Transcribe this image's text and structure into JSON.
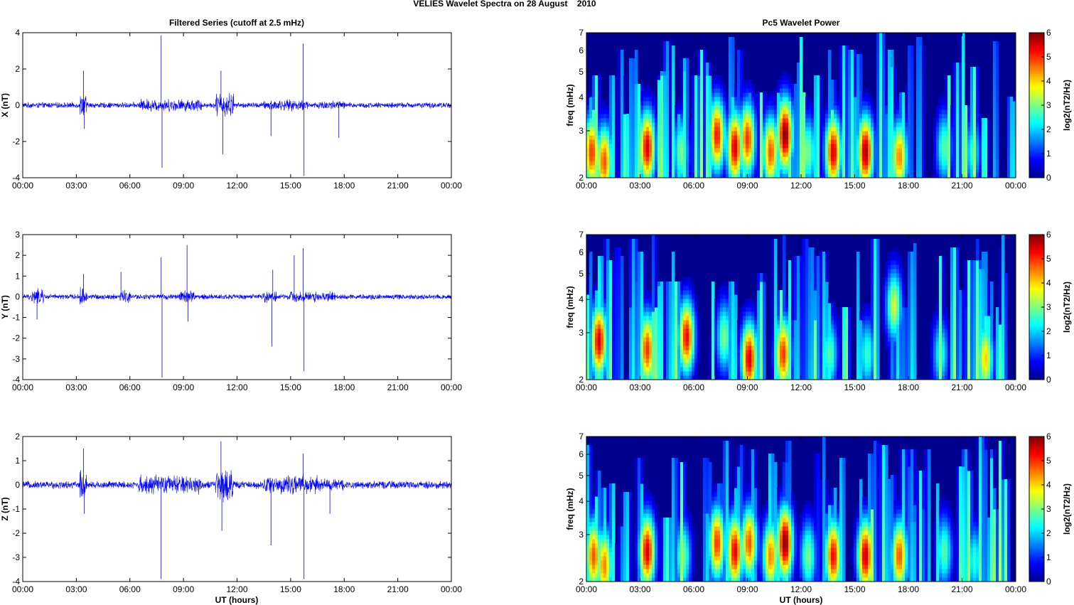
{
  "figure": {
    "title": "VELIES Wavelet Spectra on 28 August    2010",
    "left_title": "Filtered Series (cutoff at 2.5 mHz)",
    "right_title": "Pc5 Wavelet Power",
    "x_label": "UT (hours)",
    "freq_label": "freq (mHz)",
    "colorbar_label": "log2(nT2/Hz)"
  },
  "chart_data": [
    {
      "type": "line",
      "name": "x-filtered-series",
      "ylabel": "X (nT)",
      "xlim": [
        0,
        24
      ],
      "ylim": [
        -4,
        4
      ],
      "x_ticks": [
        "00:00",
        "03:00",
        "06:00",
        "09:00",
        "12:00",
        "15:00",
        "18:00",
        "21:00",
        "00:00"
      ],
      "y_ticks": [
        -4,
        -2,
        0,
        2,
        4
      ],
      "color": "#0000ff",
      "baseline_amplitude": 0.18,
      "activity_bursts": [
        {
          "start_hours": 3.2,
          "end_hours": 3.6,
          "amplitude": 0.7
        },
        {
          "start_hours": 6.5,
          "end_hours": 10.0,
          "amplitude": 0.4
        },
        {
          "start_hours": 10.8,
          "end_hours": 11.8,
          "amplitude": 0.8
        },
        {
          "start_hours": 13.5,
          "end_hours": 16.0,
          "amplitude": 0.35
        },
        {
          "start_hours": 16.5,
          "end_hours": 18.0,
          "amplitude": 0.3
        }
      ],
      "spikes": [
        {
          "x": 3.4,
          "y": 1.9
        },
        {
          "x": 3.45,
          "y": -1.3
        },
        {
          "x": 7.75,
          "y": 3.85
        },
        {
          "x": 7.8,
          "y": -3.45
        },
        {
          "x": 11.1,
          "y": 1.9
        },
        {
          "x": 11.2,
          "y": -2.7
        },
        {
          "x": 13.9,
          "y": -1.7
        },
        {
          "x": 15.7,
          "y": 3.4
        },
        {
          "x": 15.75,
          "y": -3.9
        },
        {
          "x": 17.7,
          "y": -1.8
        }
      ]
    },
    {
      "type": "line",
      "name": "y-filtered-series",
      "ylabel": "Y (nT)",
      "xlim": [
        0,
        24
      ],
      "ylim": [
        -4,
        3
      ],
      "x_ticks": [
        "00:00",
        "03:00",
        "06:00",
        "09:00",
        "12:00",
        "15:00",
        "18:00",
        "21:00",
        "00:00"
      ],
      "y_ticks": [
        -4,
        -3,
        -2,
        -1,
        0,
        1,
        2,
        3
      ],
      "color": "#0000ff",
      "baseline_amplitude": 0.15,
      "activity_bursts": [
        {
          "start_hours": 0.5,
          "end_hours": 1.2,
          "amplitude": 0.45
        },
        {
          "start_hours": 3.2,
          "end_hours": 3.6,
          "amplitude": 0.5
        },
        {
          "start_hours": 5.4,
          "end_hours": 6.0,
          "amplitude": 0.4
        },
        {
          "start_hours": 8.8,
          "end_hours": 9.6,
          "amplitude": 0.4
        },
        {
          "start_hours": 13.5,
          "end_hours": 14.2,
          "amplitude": 0.35
        },
        {
          "start_hours": 15.0,
          "end_hours": 17.5,
          "amplitude": 0.3
        }
      ],
      "spikes": [
        {
          "x": 0.8,
          "y": -1.1
        },
        {
          "x": 3.4,
          "y": 1.1
        },
        {
          "x": 5.5,
          "y": 1.2
        },
        {
          "x": 7.75,
          "y": 1.9
        },
        {
          "x": 7.8,
          "y": -3.9
        },
        {
          "x": 9.2,
          "y": 2.5
        },
        {
          "x": 9.25,
          "y": -1.2
        },
        {
          "x": 13.95,
          "y": -2.4
        },
        {
          "x": 14.0,
          "y": 1.3
        },
        {
          "x": 15.2,
          "y": 2.0
        },
        {
          "x": 15.7,
          "y": 2.35
        },
        {
          "x": 15.75,
          "y": -3.6
        }
      ]
    },
    {
      "type": "line",
      "name": "z-filtered-series",
      "ylabel": "Z (nT)",
      "xlim": [
        0,
        24
      ],
      "ylim": [
        -4,
        2
      ],
      "x_ticks": [
        "00:00",
        "03:00",
        "06:00",
        "09:00",
        "12:00",
        "15:00",
        "18:00",
        "21:00",
        "00:00"
      ],
      "y_ticks": [
        -4,
        -3,
        -2,
        -1,
        0,
        1,
        2
      ],
      "color": "#0000ff",
      "baseline_amplitude": 0.18,
      "activity_bursts": [
        {
          "start_hours": 3.2,
          "end_hours": 3.6,
          "amplitude": 0.7
        },
        {
          "start_hours": 6.5,
          "end_hours": 10.0,
          "amplitude": 0.45
        },
        {
          "start_hours": 10.8,
          "end_hours": 11.8,
          "amplitude": 0.8
        },
        {
          "start_hours": 13.5,
          "end_hours": 16.5,
          "amplitude": 0.45
        },
        {
          "start_hours": 16.5,
          "end_hours": 18.0,
          "amplitude": 0.3
        }
      ],
      "spikes": [
        {
          "x": 3.4,
          "y": 1.5
        },
        {
          "x": 3.45,
          "y": -1.2
        },
        {
          "x": 7.75,
          "y": -3.9
        },
        {
          "x": 11.1,
          "y": 1.8
        },
        {
          "x": 11.15,
          "y": -1.9
        },
        {
          "x": 13.9,
          "y": -2.5
        },
        {
          "x": 15.7,
          "y": 1.3
        },
        {
          "x": 15.75,
          "y": -3.9
        },
        {
          "x": 17.2,
          "y": -1.2
        }
      ]
    },
    {
      "type": "heatmap",
      "name": "x-wavelet-power",
      "ylabel": "freq (mHz)",
      "xlim": [
        0,
        24
      ],
      "ylim": [
        2,
        7
      ],
      "y_scale": "log",
      "x_ticks": [
        "00:00",
        "03:00",
        "06:00",
        "09:00",
        "12:00",
        "15:00",
        "18:00",
        "21:00",
        "00:00"
      ],
      "y_ticks": [
        2,
        3,
        4,
        5,
        6,
        7
      ],
      "colorbar": {
        "range": [
          0,
          6
        ],
        "ticks": [
          0,
          1,
          2,
          3,
          4,
          5,
          6
        ],
        "colormap": "jet"
      },
      "blobs": [
        {
          "x_hours": 0.3,
          "f_mHz": 2.5,
          "power": 5.0
        },
        {
          "x_hours": 1.0,
          "f_mHz": 2.3,
          "power": 4.8
        },
        {
          "x_hours": 3.4,
          "f_mHz": 2.6,
          "power": 5.5
        },
        {
          "x_hours": 5.3,
          "f_mHz": 2.5,
          "power": 3.0
        },
        {
          "x_hours": 7.3,
          "f_mHz": 2.9,
          "power": 5.2
        },
        {
          "x_hours": 8.3,
          "f_mHz": 2.6,
          "power": 5.5
        },
        {
          "x_hours": 9.0,
          "f_mHz": 2.8,
          "power": 5.0
        },
        {
          "x_hours": 10.3,
          "f_mHz": 2.5,
          "power": 4.8
        },
        {
          "x_hours": 11.1,
          "f_mHz": 2.9,
          "power": 6.0
        },
        {
          "x_hours": 12.4,
          "f_mHz": 2.5,
          "power": 3.0
        },
        {
          "x_hours": 13.8,
          "f_mHz": 2.5,
          "power": 5.5
        },
        {
          "x_hours": 15.6,
          "f_mHz": 2.5,
          "power": 5.8
        },
        {
          "x_hours": 17.5,
          "f_mHz": 2.4,
          "power": 4.5
        },
        {
          "x_hours": 20.0,
          "f_mHz": 2.6,
          "power": 2.8
        },
        {
          "x_hours": 21.6,
          "f_mHz": 2.5,
          "power": 2.5
        }
      ]
    },
    {
      "type": "heatmap",
      "name": "y-wavelet-power",
      "ylabel": "freq (mHz)",
      "xlim": [
        0,
        24
      ],
      "ylim": [
        2,
        7
      ],
      "y_scale": "log",
      "x_ticks": [
        "00:00",
        "03:00",
        "06:00",
        "09:00",
        "12:00",
        "15:00",
        "18:00",
        "21:00",
        "00:00"
      ],
      "y_ticks": [
        2,
        3,
        4,
        5,
        6,
        7
      ],
      "colorbar": {
        "range": [
          0,
          6
        ],
        "ticks": [
          0,
          1,
          2,
          3,
          4,
          5,
          6
        ],
        "colormap": "jet"
      },
      "blobs": [
        {
          "x_hours": 0.7,
          "f_mHz": 2.8,
          "power": 5.5
        },
        {
          "x_hours": 3.4,
          "f_mHz": 2.6,
          "power": 5.0
        },
        {
          "x_hours": 5.6,
          "f_mHz": 2.9,
          "power": 5.3
        },
        {
          "x_hours": 7.7,
          "f_mHz": 2.9,
          "power": 3.0
        },
        {
          "x_hours": 9.1,
          "f_mHz": 2.4,
          "power": 5.5
        },
        {
          "x_hours": 11.0,
          "f_mHz": 2.5,
          "power": 5.0
        },
        {
          "x_hours": 13.6,
          "f_mHz": 2.5,
          "power": 2.8
        },
        {
          "x_hours": 15.7,
          "f_mHz": 2.5,
          "power": 2.6
        },
        {
          "x_hours": 17.2,
          "f_mHz": 3.8,
          "power": 3.5
        },
        {
          "x_hours": 19.8,
          "f_mHz": 2.5,
          "power": 2.5
        },
        {
          "x_hours": 22.3,
          "f_mHz": 2.4,
          "power": 4.0
        }
      ]
    },
    {
      "type": "heatmap",
      "name": "z-wavelet-power",
      "ylabel": "freq (mHz)",
      "xlim": [
        0,
        24
      ],
      "ylim": [
        2,
        7
      ],
      "y_scale": "log",
      "x_ticks": [
        "00:00",
        "03:00",
        "06:00",
        "09:00",
        "12:00",
        "15:00",
        "18:00",
        "21:00",
        "00:00"
      ],
      "y_ticks": [
        2,
        3,
        4,
        5,
        6,
        7
      ],
      "colorbar": {
        "range": [
          0,
          6
        ],
        "ticks": [
          0,
          1,
          2,
          3,
          4,
          5,
          6
        ],
        "colormap": "jet"
      },
      "blobs": [
        {
          "x_hours": 0.4,
          "f_mHz": 2.5,
          "power": 4.8
        },
        {
          "x_hours": 1.0,
          "f_mHz": 2.3,
          "power": 4.5
        },
        {
          "x_hours": 3.4,
          "f_mHz": 2.6,
          "power": 5.5
        },
        {
          "x_hours": 5.4,
          "f_mHz": 2.5,
          "power": 3.0
        },
        {
          "x_hours": 7.3,
          "f_mHz": 2.8,
          "power": 5.0
        },
        {
          "x_hours": 8.3,
          "f_mHz": 2.6,
          "power": 5.4
        },
        {
          "x_hours": 9.1,
          "f_mHz": 2.8,
          "power": 4.8
        },
        {
          "x_hours": 10.3,
          "f_mHz": 2.5,
          "power": 4.5
        },
        {
          "x_hours": 11.1,
          "f_mHz": 2.8,
          "power": 6.0
        },
        {
          "x_hours": 12.4,
          "f_mHz": 2.5,
          "power": 3.0
        },
        {
          "x_hours": 13.8,
          "f_mHz": 2.5,
          "power": 5.3
        },
        {
          "x_hours": 15.6,
          "f_mHz": 2.5,
          "power": 5.6
        },
        {
          "x_hours": 17.5,
          "f_mHz": 2.5,
          "power": 4.8
        },
        {
          "x_hours": 20.0,
          "f_mHz": 2.6,
          "power": 2.8
        },
        {
          "x_hours": 21.7,
          "f_mHz": 2.4,
          "power": 2.5
        }
      ]
    }
  ]
}
